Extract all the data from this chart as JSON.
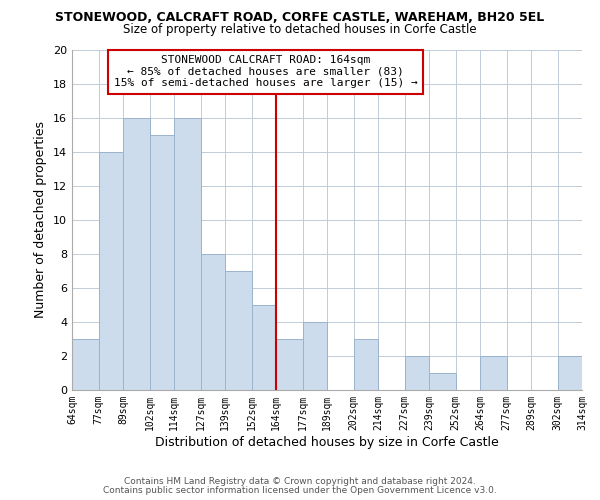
{
  "title": "STONEWOOD, CALCRAFT ROAD, CORFE CASTLE, WAREHAM, BH20 5EL",
  "subtitle": "Size of property relative to detached houses in Corfe Castle",
  "xlabel": "Distribution of detached houses by size in Corfe Castle",
  "ylabel": "Number of detached properties",
  "bar_edges": [
    64,
    77,
    89,
    102,
    114,
    127,
    139,
    152,
    164,
    177,
    189,
    202,
    214,
    227,
    239,
    252,
    264,
    277,
    289,
    302,
    314
  ],
  "bar_heights": [
    3,
    14,
    16,
    15,
    16,
    8,
    7,
    5,
    3,
    4,
    0,
    3,
    0,
    2,
    1,
    0,
    2,
    0,
    0,
    2
  ],
  "bar_color": "#ccdcec",
  "bar_edgecolor": "#9ab4cc",
  "vline_x": 164,
  "vline_color": "#cc0000",
  "ylim": [
    0,
    20
  ],
  "yticks": [
    0,
    2,
    4,
    6,
    8,
    10,
    12,
    14,
    16,
    18,
    20
  ],
  "tick_labels": [
    "64sqm",
    "77sqm",
    "89sqm",
    "102sqm",
    "114sqm",
    "127sqm",
    "139sqm",
    "152sqm",
    "164sqm",
    "177sqm",
    "189sqm",
    "202sqm",
    "214sqm",
    "227sqm",
    "239sqm",
    "252sqm",
    "264sqm",
    "277sqm",
    "289sqm",
    "302sqm",
    "314sqm"
  ],
  "annotation_title": "STONEWOOD CALCRAFT ROAD: 164sqm",
  "annotation_line1": "← 85% of detached houses are smaller (83)",
  "annotation_line2": "15% of semi-detached houses are larger (15) →",
  "annotation_box_color": "#ffffff",
  "annotation_box_edgecolor": "#cc0000",
  "footer1": "Contains HM Land Registry data © Crown copyright and database right 2024.",
  "footer2": "Contains public sector information licensed under the Open Government Licence v3.0.",
  "background_color": "#ffffff",
  "grid_color": "#c0ccd8"
}
